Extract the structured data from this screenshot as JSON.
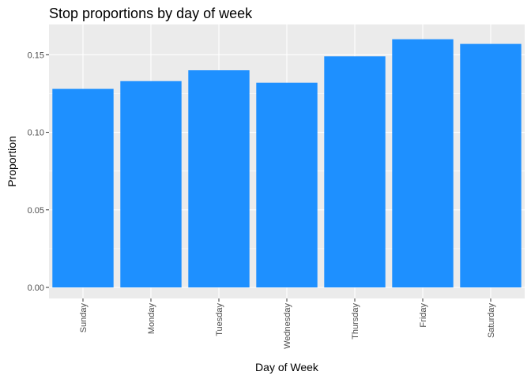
{
  "chart_data": {
    "type": "bar",
    "title": "Stop proportions by day of week",
    "xlabel": "Day of Week",
    "ylabel": "Proportion",
    "categories": [
      "Sunday",
      "Monday",
      "Tuesday",
      "Wednesday",
      "Thursday",
      "Friday",
      "Saturday"
    ],
    "values": [
      0.128,
      0.133,
      0.14,
      0.132,
      0.149,
      0.16,
      0.157
    ],
    "ylim": [
      0,
      0.168
    ],
    "yticks": [
      0.0,
      0.05,
      0.1,
      0.15
    ],
    "ytick_labels": [
      "0.00",
      "0.05",
      "0.10",
      "0.15"
    ],
    "grid": true,
    "colors": {
      "bar": "#1E90FF",
      "panel": "#EBEBEB",
      "grid": "#FFFFFF"
    }
  }
}
